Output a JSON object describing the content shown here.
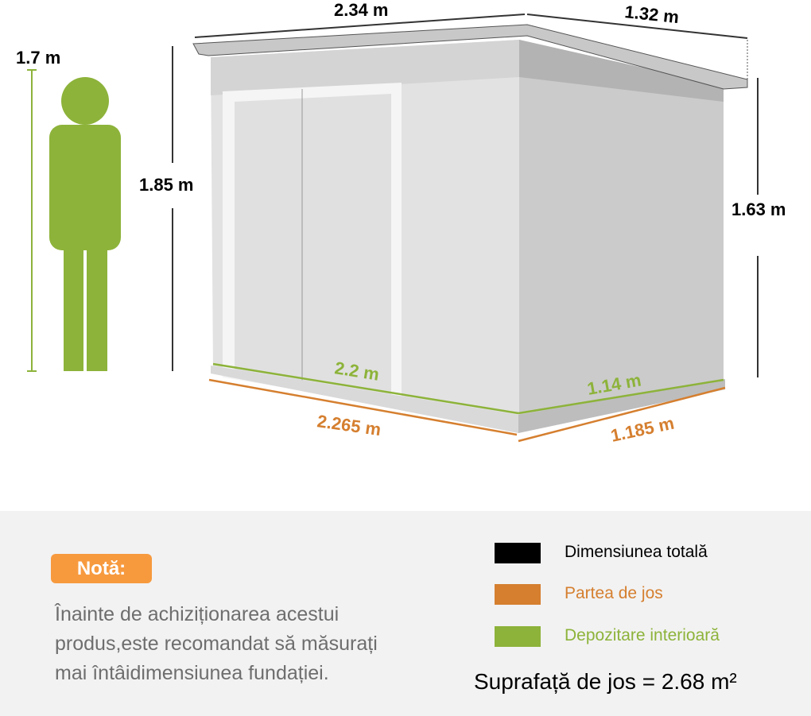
{
  "dimensions": {
    "total_width": "2.34 m",
    "total_depth": "1.32 m",
    "front_height": "1.85 m",
    "rear_height": "1.63 m",
    "person_height": "1.7 m",
    "interior_width": "2.2 m",
    "interior_depth": "1.14 m",
    "base_width": "2.265 m",
    "base_depth": "1.185 m"
  },
  "note": {
    "badge": "Notă:",
    "lines": [
      "Înainte de achiziționarea acestui",
      "produs,este recomandat să măsurați",
      "mai întâidimensiunea fundației."
    ]
  },
  "legend": [
    {
      "label": "Dimensiunea totală",
      "color": "#000000"
    },
    {
      "label": "Partea de jos",
      "color": "#d57f2f"
    },
    {
      "label": "Depozitare interioară",
      "color": "#8db33a"
    }
  ],
  "floor_area": "Suprafață de jos = 2.68 m²",
  "colors": {
    "person": "#8db33a",
    "badge": "#f79a3e",
    "panel_bg": "#f2f2f2"
  }
}
